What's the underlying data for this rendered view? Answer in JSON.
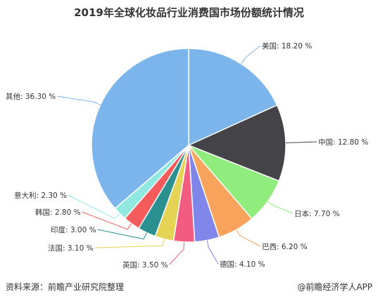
{
  "title": "2019年全球化妆品行业消费国市场份额统计情况",
  "chart_data": {
    "type": "pie",
    "title": "2019年全球化妆品行业消费国市场份额统计情况",
    "slices": [
      {
        "label": "美国",
        "value": 18.2,
        "display": "美国: 18.20 %",
        "color": "#7cb5ec"
      },
      {
        "label": "中国",
        "value": 12.8,
        "display": "中国: 12.80 %",
        "color": "#434348"
      },
      {
        "label": "日本",
        "value": 7.7,
        "display": "日本: 7.70 %",
        "color": "#90ed7d"
      },
      {
        "label": "巴西",
        "value": 6.2,
        "display": "巴西: 6.20 %",
        "color": "#f7a35c"
      },
      {
        "label": "德国",
        "value": 4.1,
        "display": "德国: 4.10 %",
        "color": "#8085e9"
      },
      {
        "label": "英国",
        "value": 3.5,
        "display": "英国: 3.50 %",
        "color": "#f15c80"
      },
      {
        "label": "法国",
        "value": 3.1,
        "display": "法国: 3.10 %",
        "color": "#e4d354"
      },
      {
        "label": "印度",
        "value": 3.0,
        "display": "印度: 3.00 %",
        "color": "#2b908f"
      },
      {
        "label": "韩国",
        "value": 2.8,
        "display": "韩国: 2.80 %",
        "color": "#f45b5b"
      },
      {
        "label": "意大利",
        "value": 2.3,
        "display": "意大利: 2.30 %",
        "color": "#91e8e1"
      },
      {
        "label": "其他",
        "value": 36.3,
        "display": "其他: 36.30 %",
        "color": "#7cb5ec"
      }
    ]
  },
  "footer": {
    "source": "资料来源：前瞻产业研究院整理",
    "brand": "@前瞻经济学人APP"
  }
}
